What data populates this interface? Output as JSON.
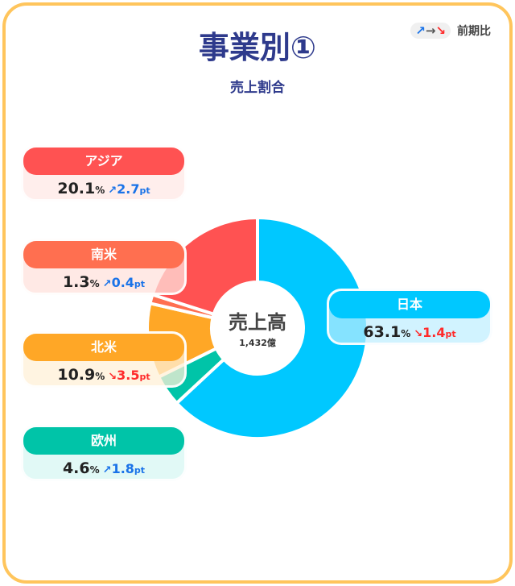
{
  "title": "事業別①",
  "subtitle": "売上割合",
  "legend": {
    "arrows": "↗→↘",
    "label": "前期比"
  },
  "center": {
    "label": "売上高",
    "value": "1,432億"
  },
  "chart_data": {
    "type": "pie",
    "variant": "donut",
    "total": "1,432億",
    "slices": [
      {
        "name": "日本",
        "value": 63.1,
        "change": "1.4",
        "direction": "down",
        "color": "#00c8ff",
        "bg": "rgba(190,238,255,0.7)"
      },
      {
        "name": "欧州",
        "value": 4.6,
        "change": "1.8",
        "direction": "up",
        "color": "#00c4a8",
        "bg": "rgba(205,245,240,0.6)"
      },
      {
        "name": "北米",
        "value": 10.9,
        "change": "3.5",
        "direction": "down",
        "color": "#ffa726",
        "bg": "rgba(255,240,215,0.75)"
      },
      {
        "name": "南米",
        "value": 1.3,
        "change": "0.4",
        "direction": "up",
        "color": "#ff6f50",
        "bg": "rgba(255,225,220,0.75)"
      },
      {
        "name": "アジア",
        "value": 20.1,
        "change": "2.7",
        "direction": "up",
        "color": "#ff5252",
        "bg": "rgba(255,232,230,0.75)"
      }
    ],
    "unit": "%",
    "change_unit": "pt"
  }
}
